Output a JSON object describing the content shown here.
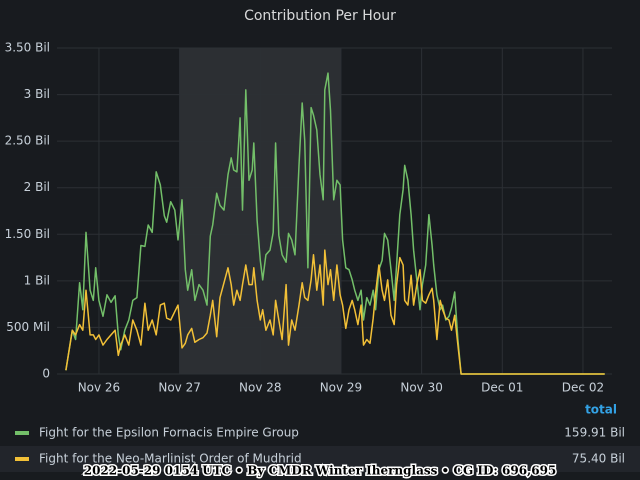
{
  "chart_data": {
    "type": "line",
    "title": "Contribution Per Hour",
    "x": [
      25.59,
      25.67,
      25.71,
      25.76,
      25.8,
      25.84,
      25.89,
      25.93,
      25.96,
      26.0,
      26.05,
      26.1,
      26.15,
      26.2,
      26.24,
      26.27,
      26.32,
      26.37,
      26.42,
      26.47,
      26.52,
      26.57,
      26.61,
      26.66,
      26.71,
      26.76,
      26.81,
      26.84,
      26.89,
      26.94,
      26.98,
      27.03,
      27.07,
      27.1,
      27.15,
      27.19,
      27.24,
      27.29,
      27.34,
      27.38,
      27.41,
      27.46,
      27.5,
      27.55,
      27.6,
      27.64,
      27.67,
      27.71,
      27.75,
      27.78,
      27.82,
      27.86,
      27.9,
      27.92,
      27.96,
      28.0,
      28.03,
      28.07,
      28.12,
      28.16,
      28.19,
      28.23,
      28.27,
      28.32,
      28.35,
      28.39,
      28.43,
      28.48,
      28.52,
      28.55,
      28.59,
      28.63,
      28.66,
      28.7,
      28.74,
      28.78,
      28.8,
      28.84,
      28.87,
      28.91,
      28.95,
      28.99,
      29.02,
      29.06,
      29.1,
      29.14,
      29.17,
      29.21,
      29.25,
      29.28,
      29.32,
      29.36,
      29.4,
      29.43,
      29.47,
      29.51,
      29.54,
      29.58,
      29.62,
      29.66,
      29.69,
      29.73,
      29.77,
      29.79,
      29.83,
      29.87,
      29.9,
      29.94,
      29.98,
      30.01,
      30.05,
      30.09,
      30.13,
      30.15,
      30.19,
      30.23,
      30.26,
      30.3,
      30.34,
      30.37,
      30.41,
      30.45,
      30.49,
      32.27
    ],
    "series": [
      {
        "name": "Fight for the Epsilon Fornacis Empire Group",
        "color": "#73bf69",
        "total": "159.91 Bil",
        "values": [
          0.04,
          0.47,
          0.37,
          0.98,
          0.69,
          1.52,
          0.9,
          0.79,
          1.14,
          0.79,
          0.62,
          0.85,
          0.77,
          0.84,
          0.42,
          0.26,
          0.47,
          0.58,
          0.79,
          0.82,
          1.38,
          1.37,
          1.6,
          1.52,
          2.17,
          2.03,
          1.7,
          1.63,
          1.85,
          1.76,
          1.44,
          1.87,
          1.12,
          0.9,
          1.12,
          0.79,
          0.96,
          0.9,
          0.74,
          1.48,
          1.6,
          1.94,
          1.81,
          1.76,
          2.14,
          2.32,
          2.19,
          2.17,
          2.75,
          1.76,
          3.05,
          2.08,
          2.19,
          2.48,
          1.65,
          1.22,
          1.01,
          1.28,
          1.33,
          1.52,
          2.48,
          1.49,
          1.28,
          1.2,
          1.51,
          1.44,
          1.28,
          2.24,
          2.91,
          2.51,
          1.14,
          2.86,
          2.78,
          2.62,
          2.14,
          1.87,
          3.05,
          3.23,
          2.83,
          1.87,
          2.08,
          2.03,
          1.44,
          1.14,
          1.12,
          1.01,
          0.9,
          0.79,
          0.9,
          0.58,
          0.82,
          0.74,
          0.9,
          0.69,
          1.12,
          1.22,
          1.51,
          1.44,
          1.12,
          0.79,
          1.17,
          1.71,
          1.98,
          2.24,
          2.08,
          1.71,
          1.33,
          1.01,
          0.69,
          0.96,
          1.17,
          1.71,
          1.38,
          1.17,
          0.85,
          0.69,
          0.74,
          0.58,
          0.62,
          0.71,
          0.88,
          0.37,
          0,
          0
        ]
      },
      {
        "name": "Fight for the Neo-Marlinist Order of Mudhrid",
        "color": "#f2c037",
        "total": "75.40 Bil",
        "values": [
          0.04,
          0.47,
          0.42,
          0.53,
          0.47,
          0.9,
          0.42,
          0.42,
          0.37,
          0.42,
          0.31,
          0.37,
          0.42,
          0.47,
          0.2,
          0.31,
          0.42,
          0.31,
          0.58,
          0.47,
          0.31,
          0.76,
          0.47,
          0.58,
          0.42,
          0.74,
          0.76,
          0.6,
          0.58,
          0.67,
          0.74,
          0.28,
          0.33,
          0.42,
          0.49,
          0.34,
          0.37,
          0.39,
          0.44,
          0.63,
          0.79,
          0.4,
          0.82,
          0.98,
          1.14,
          0.96,
          0.74,
          0.9,
          0.79,
          0.96,
          1.17,
          0.96,
          0.96,
          1.14,
          0.79,
          0.58,
          0.69,
          0.47,
          0.58,
          0.42,
          0.79,
          0.58,
          0.37,
          0.96,
          0.31,
          0.58,
          0.47,
          0.74,
          0.98,
          0.82,
          0.79,
          1.01,
          1.28,
          0.9,
          1.17,
          0.74,
          1.33,
          0.96,
          1.12,
          0.79,
          1.17,
          0.85,
          0.74,
          0.49,
          0.69,
          0.79,
          0.69,
          0.53,
          0.74,
          0.31,
          0.37,
          0.33,
          0.6,
          0.87,
          1.17,
          0.9,
          0.79,
          1.01,
          0.63,
          0.53,
          0.96,
          1.25,
          1.17,
          0.79,
          0.74,
          1.06,
          0.74,
          0.96,
          1.12,
          0.79,
          0.76,
          0.85,
          0.92,
          0.79,
          0.37,
          0.79,
          0.69,
          0.6,
          0.58,
          0.47,
          0.63,
          0.31,
          0,
          0
        ]
      }
    ],
    "xlim": [
      25.48,
      32.36
    ],
    "xticks": [
      {
        "value": 26,
        "label": "Nov 26"
      },
      {
        "value": 27,
        "label": "Nov 27"
      },
      {
        "value": 28,
        "label": "Nov 28"
      },
      {
        "value": 29,
        "label": "Nov 29"
      },
      {
        "value": 30,
        "label": "Nov 30"
      },
      {
        "value": 31,
        "label": "Dec 01"
      },
      {
        "value": 32,
        "label": "Dec 02"
      }
    ],
    "ylim": [
      0,
      3.5
    ],
    "yticks": [
      0,
      {
        "value": 0.5,
        "label": "500 Mil"
      },
      {
        "value": 1,
        "label": "1 Bil"
      },
      {
        "value": 1.5,
        "label": "1.50 Bil"
      },
      {
        "value": 2,
        "label": "2 Bil"
      },
      {
        "value": 2.5,
        "label": "2.50 Bil"
      },
      {
        "value": 3,
        "label": "3 Bil"
      },
      {
        "value": 3.5,
        "label": "3.50 Bil"
      }
    ],
    "grid": true,
    "highlight_region": [
      27,
      29
    ],
    "legend_header": "total",
    "footer": "2022-05-29 0154 UTC • By CMDR Winter Ihernglass • CG ID: 696,695"
  }
}
